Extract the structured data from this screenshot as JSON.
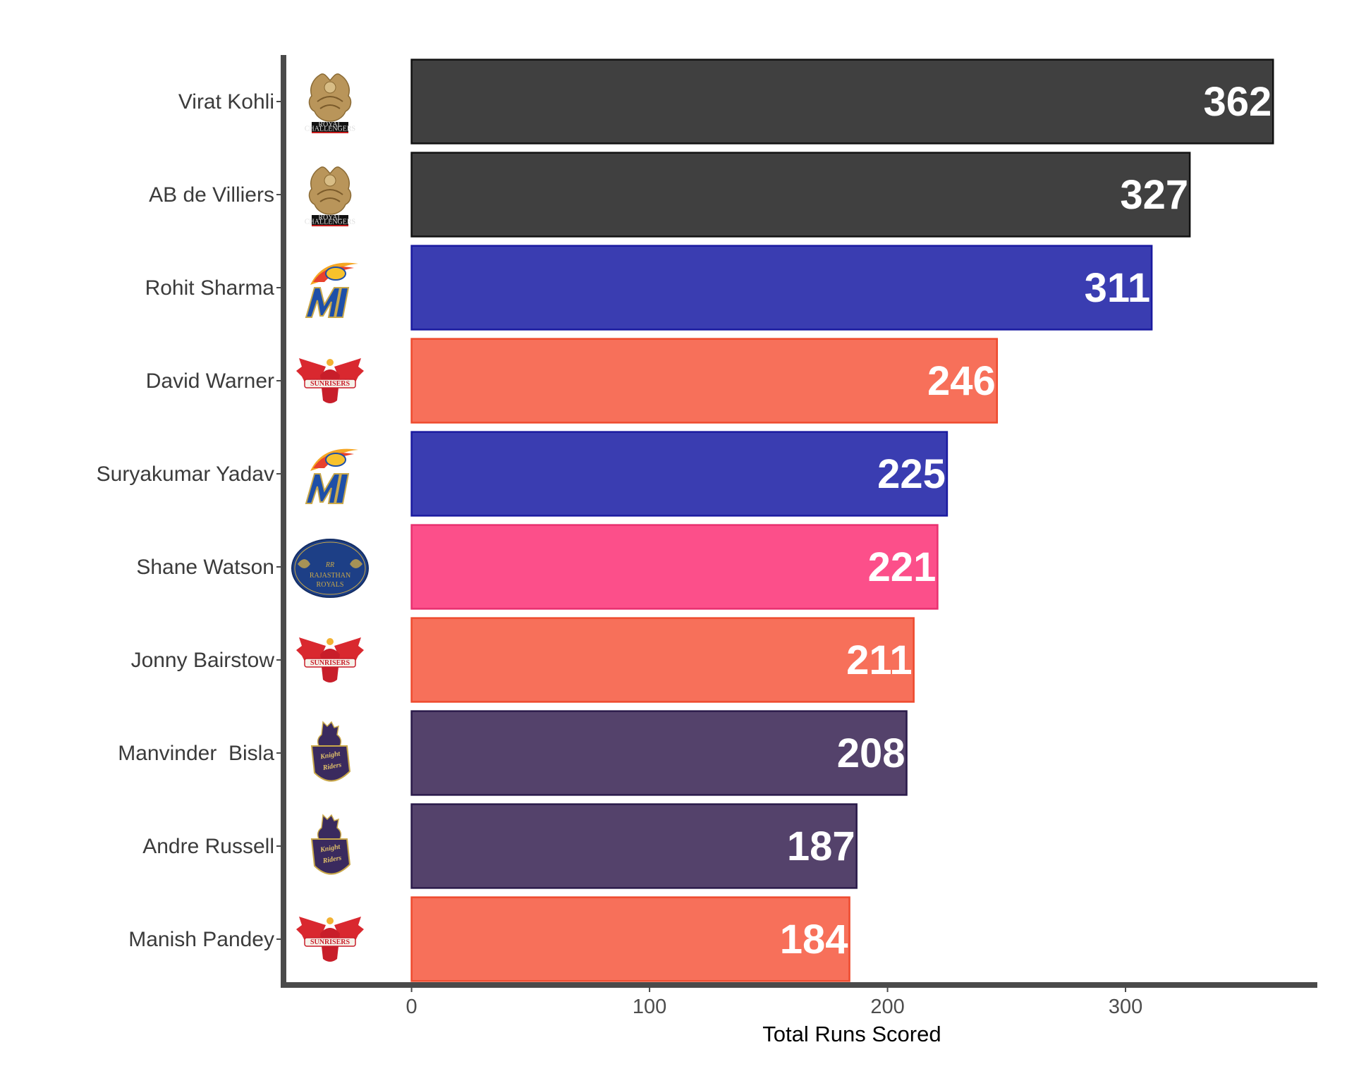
{
  "chart_data": {
    "type": "bar",
    "orientation": "horizontal",
    "title": "",
    "xlabel": "Total Runs Scored",
    "ylabel": "",
    "xlim": [
      -55,
      380
    ],
    "xticks": [
      0,
      100,
      200,
      300
    ],
    "grid": false,
    "legend": "none",
    "categories": [
      "Virat Kohli",
      "AB de Villiers",
      "Rohit Sharma",
      "David Warner",
      "Suryakumar Yadav",
      "Shane Watson",
      "Jonny Bairstow",
      "Manvinder  Bisla",
      "Andre Russell",
      "Manish Pandey"
    ],
    "values": [
      362,
      327,
      311,
      246,
      225,
      221,
      211,
      208,
      187,
      184
    ],
    "value_labels": [
      "362",
      "327",
      "311",
      "246",
      "225",
      "221",
      "211",
      "208",
      "187",
      "184"
    ],
    "teams": [
      "RCB",
      "RCB",
      "MI",
      "SRH",
      "MI",
      "RR",
      "SRH",
      "KKR",
      "KKR",
      "SRH"
    ],
    "team_colors": {
      "RCB": {
        "fill": "#404040",
        "stroke": "#111111"
      },
      "MI": {
        "fill": "#3a3db1",
        "stroke": "#1a1aa0"
      },
      "SRH": {
        "fill": "#f7705a",
        "stroke": "#ee4a2e"
      },
      "RR": {
        "fill": "#fc4f8a",
        "stroke": "#e8306f"
      },
      "KKR": {
        "fill": "#54426b",
        "stroke": "#2a1a4a"
      }
    },
    "team_logos": {
      "RCB": {
        "icon": "rcb-logo-icon",
        "text_lines": [
          "ROYAL",
          "CHALLENGERS"
        ]
      },
      "MI": {
        "icon": "mi-logo-icon",
        "text_lines": [
          "MI"
        ]
      },
      "SRH": {
        "icon": "srh-logo-icon",
        "text_lines": [
          "SUNRISERS"
        ]
      },
      "RR": {
        "icon": "rr-logo-icon",
        "text_lines": [
          "RR",
          "RAJASTHAN",
          "ROYALS"
        ]
      },
      "KKR": {
        "icon": "kkr-logo-icon",
        "text_lines": [
          "Knight",
          "Riders"
        ]
      }
    }
  }
}
